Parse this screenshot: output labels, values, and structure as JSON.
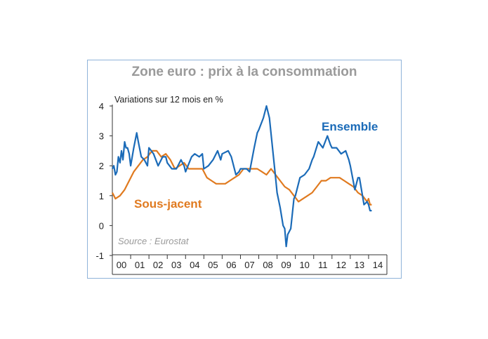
{
  "chart_data": {
    "type": "line",
    "title": "Zone euro : prix à la consommation",
    "unit_label": "Variations sur 12 mois en %",
    "source": "Source : Eurostat",
    "x_tick_labels": [
      "00",
      "01",
      "02",
      "03",
      "04",
      "05",
      "06",
      "07",
      "08",
      "09",
      "10",
      "11",
      "12",
      "13",
      "14"
    ],
    "y_ticks": [
      4,
      3,
      2,
      1,
      0,
      -1
    ],
    "ylim": [
      -1,
      4
    ],
    "xlim": [
      2000.0,
      2015.0
    ],
    "grid": false,
    "colors": {
      "Ensemble": "#1b6bb8",
      "Sous-jacent": "#e07a1f"
    },
    "series": [
      {
        "name": "Ensemble",
        "x": [
          2000.0,
          2000.08,
          2000.17,
          2000.25,
          2000.33,
          2000.42,
          2000.5,
          2000.58,
          2000.67,
          2000.75,
          2000.83,
          2000.92,
          2001.0,
          2001.17,
          2001.33,
          2001.42,
          2001.58,
          2001.75,
          2001.92,
          2002.0,
          2002.25,
          2002.5,
          2002.75,
          2002.92,
          2003.0,
          2003.25,
          2003.5,
          2003.75,
          2003.92,
          2004.0,
          2004.33,
          2004.5,
          2004.75,
          2004.92,
          2005.0,
          2005.25,
          2005.5,
          2005.75,
          2005.92,
          2006.0,
          2006.33,
          2006.5,
          2006.75,
          2006.92,
          2007.0,
          2007.33,
          2007.5,
          2007.75,
          2007.92,
          2008.0,
          2008.25,
          2008.42,
          2008.5,
          2008.58,
          2008.75,
          2008.92,
          2009.0,
          2009.17,
          2009.33,
          2009.42,
          2009.5,
          2009.58,
          2009.75,
          2009.92,
          2010.0,
          2010.25,
          2010.5,
          2010.75,
          2010.92,
          2011.0,
          2011.25,
          2011.5,
          2011.75,
          2011.92,
          2012.0,
          2012.25,
          2012.5,
          2012.75,
          2012.92,
          2013.0,
          2013.25,
          2013.42,
          2013.5,
          2013.75,
          2013.92,
          2014.0,
          2014.08,
          2014.17
        ],
        "values": [
          1.9,
          2.0,
          1.7,
          1.8,
          2.3,
          2.1,
          2.5,
          2.2,
          2.8,
          2.6,
          2.6,
          2.4,
          2.0,
          2.6,
          3.1,
          2.8,
          2.3,
          2.2,
          2.0,
          2.6,
          2.4,
          2.0,
          2.3,
          2.3,
          2.1,
          1.9,
          1.9,
          2.2,
          2.0,
          1.8,
          2.3,
          2.4,
          2.3,
          2.4,
          1.9,
          2.0,
          2.2,
          2.5,
          2.2,
          2.4,
          2.5,
          2.3,
          1.7,
          1.8,
          1.9,
          1.9,
          1.8,
          2.6,
          3.1,
          3.2,
          3.6,
          4.0,
          3.8,
          3.6,
          2.6,
          1.6,
          1.1,
          0.6,
          0.0,
          -0.1,
          -0.7,
          -0.3,
          -0.1,
          0.9,
          1.0,
          1.6,
          1.7,
          1.9,
          2.2,
          2.3,
          2.8,
          2.6,
          3.0,
          2.7,
          2.6,
          2.6,
          2.4,
          2.5,
          2.2,
          2.0,
          1.2,
          1.6,
          1.6,
          0.7,
          0.8,
          0.7,
          0.5,
          0.5
        ]
      },
      {
        "name": "Sous-jacent",
        "x": [
          2000.0,
          2000.17,
          2000.42,
          2000.67,
          2000.92,
          2001.17,
          2001.42,
          2001.67,
          2001.92,
          2002.17,
          2002.42,
          2002.67,
          2002.92,
          2003.17,
          2003.42,
          2003.67,
          2003.92,
          2004.17,
          2004.42,
          2004.67,
          2004.92,
          2005.17,
          2005.42,
          2005.67,
          2005.92,
          2006.17,
          2006.42,
          2006.67,
          2006.92,
          2007.17,
          2007.42,
          2007.67,
          2007.92,
          2008.17,
          2008.42,
          2008.67,
          2008.92,
          2009.17,
          2009.42,
          2009.67,
          2009.92,
          2010.17,
          2010.42,
          2010.67,
          2010.92,
          2011.17,
          2011.42,
          2011.67,
          2011.92,
          2012.17,
          2012.42,
          2012.67,
          2012.92,
          2013.17,
          2013.42,
          2013.67,
          2013.92,
          2014.0,
          2014.08,
          2014.17
        ],
        "values": [
          1.1,
          0.9,
          1.0,
          1.2,
          1.5,
          1.8,
          2.0,
          2.2,
          2.3,
          2.5,
          2.5,
          2.3,
          2.4,
          2.2,
          1.9,
          2.0,
          2.1,
          1.9,
          1.9,
          1.9,
          1.9,
          1.6,
          1.5,
          1.4,
          1.4,
          1.4,
          1.5,
          1.6,
          1.7,
          1.9,
          1.9,
          1.9,
          1.9,
          1.8,
          1.7,
          1.9,
          1.7,
          1.5,
          1.3,
          1.2,
          1.0,
          0.8,
          0.9,
          1.0,
          1.1,
          1.3,
          1.5,
          1.5,
          1.6,
          1.6,
          1.6,
          1.5,
          1.4,
          1.3,
          1.1,
          1.0,
          0.8,
          0.9,
          0.7,
          0.7
        ]
      }
    ]
  }
}
